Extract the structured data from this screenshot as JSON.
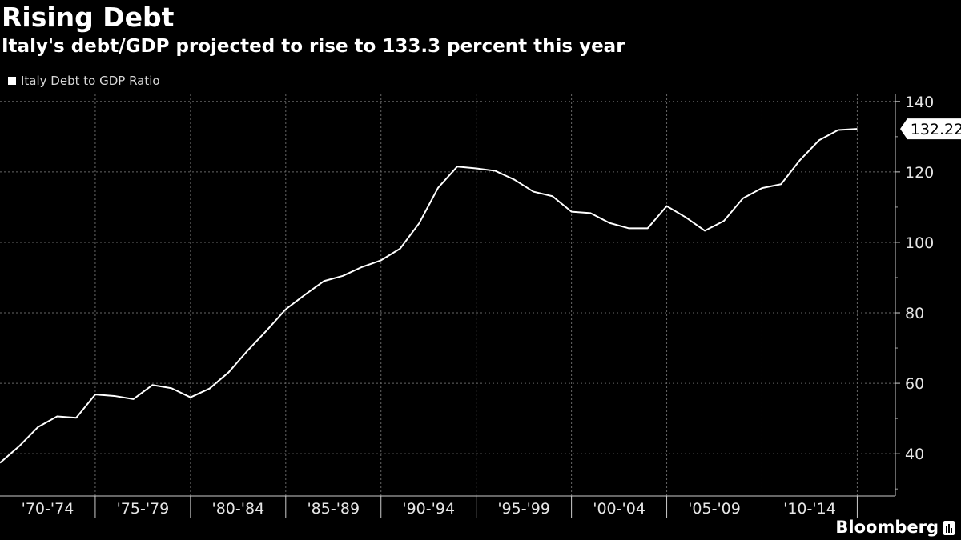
{
  "header": {
    "title": "Rising Debt",
    "subtitle": "Italy's debt/GDP projected to rise to 133.3 percent this year"
  },
  "legend": {
    "label": "Italy Debt to GDP Ratio"
  },
  "source": {
    "brand": "Bloomberg"
  },
  "colors": {
    "background": "#000000",
    "line": "#ffffff",
    "grid": "#666666",
    "text": "#e6e6e6"
  },
  "chart_data": {
    "type": "line",
    "title": "Rising Debt",
    "subtitle": "Italy's debt/GDP projected to rise to 133.3 percent this year",
    "xlabel": "",
    "ylabel": "",
    "ylim": [
      28,
      142
    ],
    "yticks": [
      40,
      60,
      80,
      100,
      120,
      140
    ],
    "xticks": [
      "'70-'74",
      "'75-'79",
      "'80-'84",
      "'85-'89",
      "'90-'94",
      "'95-'99",
      "'00-'04",
      "'05-'09",
      "'10-'14"
    ],
    "grid": true,
    "legend_position": "top-left",
    "last_value_label": "132.22",
    "series": [
      {
        "name": "Italy Debt to GDP Ratio",
        "x": [
          1970,
          1971,
          1972,
          1973,
          1974,
          1975,
          1976,
          1977,
          1978,
          1979,
          1980,
          1981,
          1982,
          1983,
          1984,
          1985,
          1986,
          1987,
          1988,
          1989,
          1990,
          1991,
          1992,
          1993,
          1994,
          1995,
          1996,
          1997,
          1998,
          1999,
          2000,
          2001,
          2002,
          2003,
          2004,
          2005,
          2006,
          2007,
          2008,
          2009,
          2010,
          2011,
          2012,
          2013,
          2014,
          2015
        ],
        "values": [
          37.4,
          42.1,
          47.6,
          50.6,
          50.2,
          56.8,
          56.4,
          55.5,
          59.5,
          58.6,
          56.0,
          58.5,
          63.1,
          69.3,
          75.0,
          81.0,
          85.1,
          89.0,
          90.5,
          93.0,
          94.9,
          98.2,
          105.4,
          115.5,
          121.5,
          121.0,
          120.3,
          117.8,
          114.4,
          113.1,
          108.7,
          108.3,
          105.5,
          104.0,
          104.0,
          110.3,
          107.1,
          103.3,
          106.1,
          112.5,
          115.4,
          116.5,
          123.4,
          129.0,
          131.9,
          132.22
        ]
      }
    ]
  }
}
